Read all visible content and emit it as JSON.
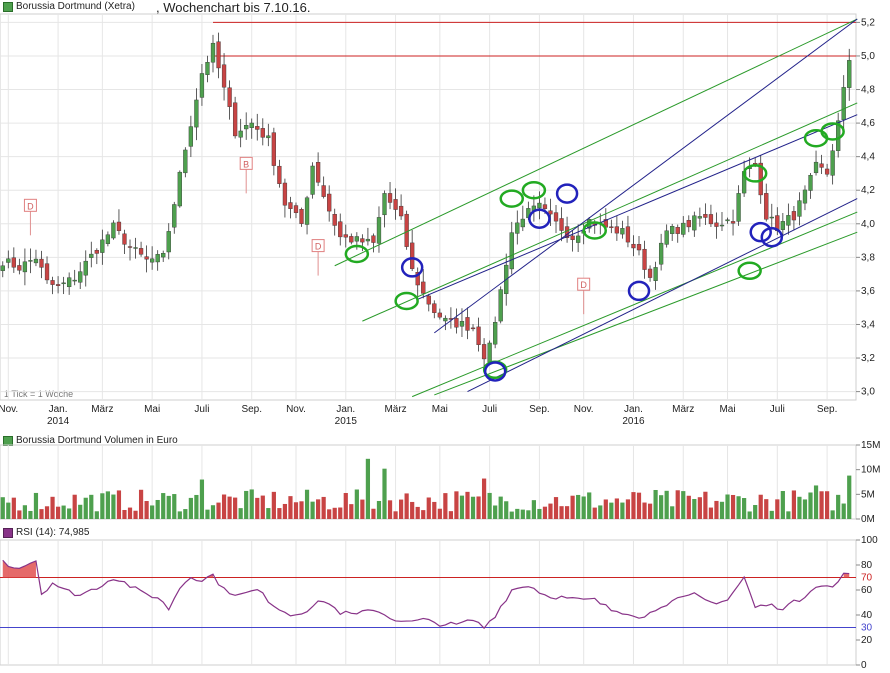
{
  "header": {
    "instrument": "Borussia Dortmund (Xetra)",
    "subtitle_prefix": ",",
    "subtitle": "Wochenchart bis 7.10.16."
  },
  "colors": {
    "up": "#4ea04e",
    "down": "#c84444",
    "grid": "#e6e6e6",
    "resistance": "#cc2222",
    "channel_green": "#2a9a2a",
    "channel_blue": "#22228a",
    "rsi_line": "#883388",
    "rsi_fill": "#e05050",
    "rsi70": "#cc2222",
    "rsi30": "#4444cc"
  },
  "tick_note": "1 Tick = 1 Woche",
  "chart_data": [
    {
      "type": "candlestick",
      "panel": "price",
      "title": "Borussia Dortmund (Xetra)",
      "ylim": [
        2.95,
        5.25
      ],
      "yticks": [
        "3,0",
        "3,2",
        "3,4",
        "3,6",
        "3,8",
        "4,0",
        "4,2",
        "4,4",
        "4,6",
        "4,8",
        "5,0",
        "5,2"
      ],
      "ytick_values": [
        3.0,
        3.2,
        3.4,
        3.6,
        3.8,
        4.0,
        4.2,
        4.4,
        4.6,
        4.8,
        5.0,
        5.2
      ],
      "xticks": [
        "Nov.",
        "Jan.",
        "März",
        "Mai",
        "Juli",
        "Sep.",
        "Nov.",
        "Jan.",
        "März",
        "Mai",
        "Juli",
        "Sep.",
        "Nov.",
        "Jan.",
        "März",
        "Mai",
        "Juli",
        "Sep."
      ],
      "xtick_weeks": [
        1,
        10,
        18,
        27,
        36,
        45,
        53,
        62,
        71,
        79,
        88,
        97,
        105,
        114,
        123,
        131,
        140,
        149
      ],
      "year_labels": [
        "2014",
        "2015",
        "2016"
      ],
      "year_weeks": [
        10,
        62,
        114
      ],
      "n_weeks": 154,
      "close_anchors": [
        [
          0,
          3.78
        ],
        [
          3,
          3.74
        ],
        [
          6,
          3.8
        ],
        [
          8,
          3.65
        ],
        [
          10,
          3.62
        ],
        [
          13,
          3.68
        ],
        [
          17,
          3.85
        ],
        [
          20,
          3.98
        ],
        [
          23,
          3.86
        ],
        [
          26,
          3.78
        ],
        [
          29,
          3.8
        ],
        [
          33,
          4.45
        ],
        [
          36,
          4.9
        ],
        [
          38,
          5.05
        ],
        [
          40,
          4.8
        ],
        [
          42,
          4.55
        ],
        [
          45,
          4.6
        ],
        [
          48,
          4.5
        ],
        [
          51,
          4.12
        ],
        [
          54,
          4.0
        ],
        [
          56,
          4.35
        ],
        [
          59,
          4.08
        ],
        [
          61,
          3.92
        ],
        [
          64,
          3.9
        ],
        [
          67,
          3.88
        ],
        [
          69,
          4.18
        ],
        [
          72,
          4.02
        ],
        [
          74,
          3.72
        ],
        [
          76,
          3.58
        ],
        [
          78,
          3.48
        ],
        [
          80,
          3.42
        ],
        [
          83,
          3.4
        ],
        [
          85,
          3.38
        ],
        [
          87,
          3.22
        ],
        [
          88,
          3.26
        ],
        [
          90,
          3.6
        ],
        [
          92,
          3.95
        ],
        [
          94,
          4.05
        ],
        [
          97,
          4.1
        ],
        [
          100,
          4.0
        ],
        [
          103,
          3.92
        ],
        [
          106,
          4.02
        ],
        [
          109,
          3.98
        ],
        [
          112,
          3.95
        ],
        [
          115,
          3.82
        ],
        [
          117,
          3.68
        ],
        [
          120,
          3.95
        ],
        [
          123,
          3.98
        ],
        [
          126,
          4.04
        ],
        [
          129,
          4.0
        ],
        [
          132,
          4.03
        ],
        [
          134,
          4.3
        ],
        [
          136,
          4.35
        ],
        [
          138,
          4.05
        ],
        [
          140,
          3.98
        ],
        [
          143,
          4.05
        ],
        [
          145,
          4.18
        ],
        [
          147,
          4.34
        ],
        [
          149,
          4.3
        ],
        [
          151,
          4.6
        ],
        [
          153,
          4.98
        ]
      ],
      "channel_green": [
        [
          [
            60,
            3.75
          ],
          [
            153,
            5.22
          ]
        ],
        [
          [
            65,
            3.42
          ],
          [
            153,
            4.72
          ]
        ],
        [
          [
            74,
            2.97
          ],
          [
            153,
            4.07
          ]
        ],
        [
          [
            78,
            2.98
          ],
          [
            153,
            3.95
          ]
        ]
      ],
      "channel_blue": [
        [
          [
            78,
            3.35
          ],
          [
            153,
            5.22
          ]
        ],
        [
          [
            75,
            3.55
          ],
          [
            153,
            4.65
          ]
        ],
        [
          [
            84,
            3.0
          ],
          [
            153,
            4.15
          ]
        ]
      ],
      "resistance": [
        5.2,
        5.0
      ],
      "markers": [
        {
          "label": "D",
          "week": 5,
          "value": 4.11
        },
        {
          "label": "B",
          "week": 44,
          "value": 4.36
        },
        {
          "label": "D",
          "week": 57,
          "value": 3.87
        },
        {
          "label": "D",
          "week": 105,
          "value": 3.64
        }
      ],
      "ellipses_green": [
        [
          64,
          3.82
        ],
        [
          73,
          3.54
        ],
        [
          89,
          3.13
        ],
        [
          92,
          4.15
        ],
        [
          96,
          4.2
        ],
        [
          107,
          3.96
        ],
        [
          136,
          4.3
        ],
        [
          135,
          3.72
        ],
        [
          147,
          4.51
        ],
        [
          150,
          4.55
        ]
      ],
      "ellipses_blue": [
        [
          74,
          3.74
        ],
        [
          97,
          4.03
        ],
        [
          102,
          4.18
        ],
        [
          115,
          3.6
        ],
        [
          137,
          3.95
        ],
        [
          139,
          3.92
        ],
        [
          89,
          3.12
        ]
      ]
    },
    {
      "type": "bar",
      "panel": "volume",
      "title": "Borussia Dortmund Volumen in Euro",
      "ylim": [
        0,
        15000000
      ],
      "yticks": [
        "0M",
        "5M",
        "10M",
        "15M"
      ],
      "ytick_values": [
        0,
        5000000,
        10000000,
        15000000
      ],
      "notable_values": [
        [
          36,
          8000000
        ],
        [
          66,
          12200000
        ],
        [
          69,
          10200000
        ],
        [
          87,
          8200000
        ],
        [
          147,
          6800000
        ],
        [
          153,
          8800000
        ]
      ]
    },
    {
      "type": "line",
      "panel": "rsi",
      "title": "RSI (14): 74,985",
      "ylim": [
        0,
        100
      ],
      "yticks": [
        "0",
        "20",
        "40",
        "60",
        "80",
        "100"
      ],
      "ytick_values": [
        0,
        20,
        40,
        60,
        80,
        100
      ],
      "levels": [
        {
          "value": 70,
          "label": "70"
        },
        {
          "value": 30,
          "label": "30"
        }
      ],
      "rsi_anchors": [
        [
          0,
          83
        ],
        [
          2,
          78
        ],
        [
          4,
          80
        ],
        [
          6,
          84
        ],
        [
          7,
          57
        ],
        [
          9,
          66
        ],
        [
          11,
          60
        ],
        [
          14,
          56
        ],
        [
          17,
          62
        ],
        [
          20,
          70
        ],
        [
          22,
          66
        ],
        [
          25,
          58
        ],
        [
          28,
          54
        ],
        [
          30,
          45
        ],
        [
          32,
          62
        ],
        [
          34,
          71
        ],
        [
          36,
          68
        ],
        [
          38,
          72
        ],
        [
          40,
          60
        ],
        [
          43,
          56
        ],
        [
          46,
          60
        ],
        [
          49,
          48
        ],
        [
          52,
          40
        ],
        [
          55,
          44
        ],
        [
          58,
          52
        ],
        [
          61,
          42
        ],
        [
          64,
          40
        ],
        [
          67,
          45
        ],
        [
          70,
          38
        ],
        [
          73,
          34
        ],
        [
          76,
          36
        ],
        [
          79,
          33
        ],
        [
          82,
          32
        ],
        [
          85,
          36
        ],
        [
          87,
          30
        ],
        [
          89,
          40
        ],
        [
          92,
          60
        ],
        [
          95,
          64
        ],
        [
          98,
          56
        ],
        [
          101,
          54
        ],
        [
          104,
          52
        ],
        [
          107,
          52
        ],
        [
          110,
          44
        ],
        [
          113,
          42
        ],
        [
          116,
          38
        ],
        [
          119,
          48
        ],
        [
          122,
          52
        ],
        [
          125,
          56
        ],
        [
          128,
          50
        ],
        [
          131,
          52
        ],
        [
          134,
          70
        ],
        [
          136,
          46
        ],
        [
          138,
          48
        ],
        [
          141,
          46
        ],
        [
          144,
          52
        ],
        [
          147,
          64
        ],
        [
          150,
          62
        ],
        [
          152,
          72
        ],
        [
          153,
          74.985
        ]
      ],
      "current": "74,985"
    }
  ]
}
